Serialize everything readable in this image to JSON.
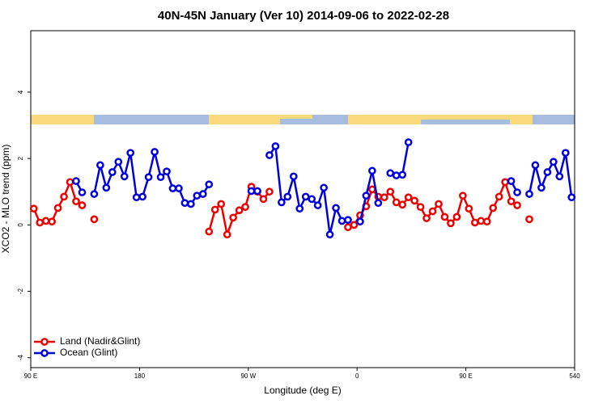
{
  "chart_data": {
    "type": "line",
    "title": "40N-45N January (Ver 10)   2014-09-06 to 2022-02-28",
    "x_label": "Longitude (deg E)",
    "y_label": "XCO2 - MLO trend (ppm)",
    "x": [
      92.5,
      97.5,
      102.5,
      107.5,
      112.5,
      117.5,
      122.5,
      127.5,
      132.5,
      137.5,
      142.5,
      147.5,
      152.5,
      157.5,
      162.5,
      167.5,
      172.5,
      177.5,
      182.5,
      187.5,
      192.5,
      197.5,
      202.5,
      207.5,
      212.5,
      217.5,
      222.5,
      227.5,
      232.5,
      237.5,
      242.5,
      247.5,
      252.5,
      257.5,
      262.5,
      267.5,
      272.5,
      277.5,
      282.5,
      287.5,
      292.5,
      297.5,
      302.5,
      307.5,
      312.5,
      317.5,
      322.5,
      327.5,
      332.5,
      337.5,
      342.5,
      347.5,
      352.5,
      357.5,
      362.5,
      367.5,
      372.5,
      377.5,
      382.5,
      387.5,
      392.5,
      397.5,
      402.5,
      407.5,
      412.5,
      417.5,
      422.5,
      427.5,
      432.5,
      437.5,
      442.5,
      447.5,
      452.5,
      457.5,
      462.5,
      467.5,
      472.5,
      477.5,
      482.5,
      487.5,
      492.5,
      497.5,
      502.5,
      507.5,
      512.5,
      517.5,
      522.5,
      527.5,
      532.5,
      537.5
    ],
    "series": [
      {
        "name": "Land (Nadir&Glint)",
        "color": "#ee0000",
        "values": [
          0.49,
          0.07,
          0.12,
          0.1,
          0.51,
          0.85,
          1.29,
          0.71,
          0.59,
          null,
          0.17,
          null,
          null,
          null,
          null,
          null,
          null,
          null,
          null,
          null,
          null,
          null,
          null,
          null,
          null,
          null,
          null,
          null,
          null,
          -0.2,
          0.46,
          0.63,
          -0.29,
          0.22,
          0.44,
          0.54,
          1.15,
          1.0,
          0.78,
          1.0,
          null,
          null,
          null,
          null,
          null,
          null,
          null,
          null,
          null,
          null,
          null,
          null,
          -0.07,
          0,
          0.29,
          0.56,
          1.07,
          0.85,
          0.83,
          1.0,
          0.68,
          0.61,
          0.83,
          0.73,
          0.54,
          0.2,
          0.41,
          0.63,
          0.24,
          0.05,
          0.24,
          0.88,
          0.49,
          0.07,
          0.12,
          0.1,
          0.51,
          0.85,
          1.29,
          0.71,
          0.59,
          null,
          0.17,
          null,
          null,
          null,
          null,
          null,
          null,
          null
        ]
      },
      {
        "name": "Ocean (Glint)",
        "color": "#0000dd",
        "values": [
          null,
          null,
          null,
          null,
          null,
          null,
          null,
          1.32,
          0.98,
          null,
          0.93,
          1.8,
          1.12,
          1.59,
          1.9,
          1.46,
          2.17,
          0.83,
          0.85,
          1.44,
          2.2,
          1.44,
          1.61,
          1.1,
          1.1,
          0.66,
          0.63,
          0.88,
          0.93,
          1.22,
          null,
          null,
          null,
          null,
          null,
          null,
          1.02,
          1.02,
          null,
          2.1,
          2.37,
          0.68,
          0.85,
          1.46,
          0.49,
          0.85,
          0.78,
          0.59,
          1.12,
          -0.29,
          0.51,
          0.12,
          0.15,
          null,
          0.1,
          0.88,
          1.63,
          0.66,
          null,
          1.56,
          1.49,
          1.51,
          2.49,
          null,
          null,
          null,
          null,
          null,
          null,
          null,
          null,
          null,
          null,
          null,
          null,
          null,
          null,
          null,
          null,
          1.32,
          0.98,
          null,
          0.93,
          1.8,
          1.12,
          1.59,
          1.9,
          1.46,
          2.17,
          0.83
        ]
      }
    ],
    "xlim": [
      90,
      540
    ],
    "xticks": [
      {
        "value": 90,
        "label": "90 E"
      },
      180,
      {
        "value": 270,
        "label": "90 W"
      },
      {
        "value": 360,
        "label": "0"
      },
      {
        "value": 450,
        "label": "90 E"
      },
      540
    ],
    "ylim": [
      -4.3,
      5.85
    ],
    "yticks": [
      -4,
      -2,
      0,
      2,
      4
    ],
    "legend": "bottom left",
    "grid": false
  }
}
